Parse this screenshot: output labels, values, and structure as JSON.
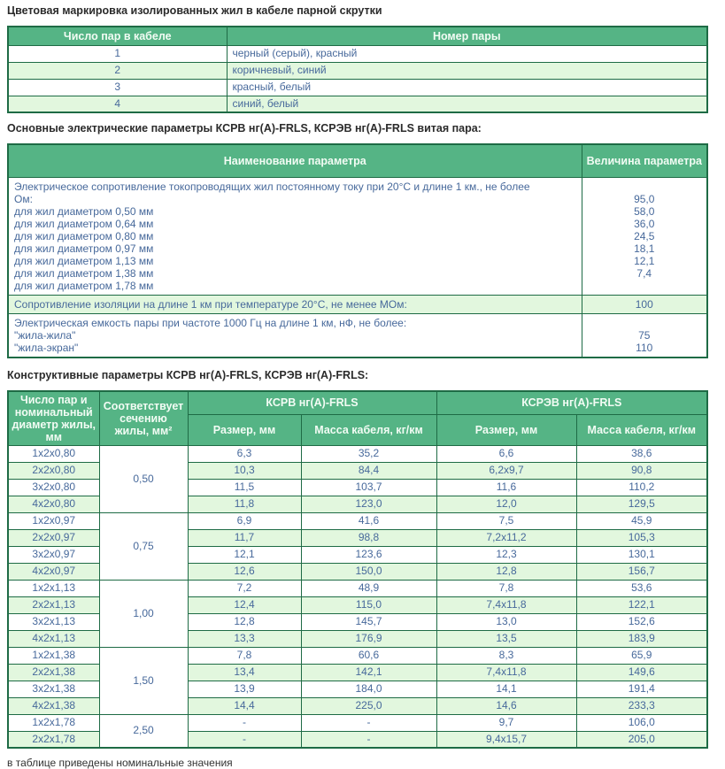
{
  "titles": {
    "section1": "Цветовая маркировка изолированных жил в кабеле парной скрутки",
    "section2": "Основные электрические параметры КСРВ нг(А)-FRLS, КСРЭВ нг(А)-FRLS витая пара:",
    "section3": "Конструктивные параметры КСРВ нг(А)-FRLS, КСРЭВ нг(А)-FRLS:",
    "footnote": "в таблице приведены номинальные значения"
  },
  "colors": {
    "header_green": "#55b485",
    "border_green": "#1e6b45",
    "row_alt_green": "#e2f7de",
    "cell_text_blue": "#47699b",
    "header_text": "#f2fcf4",
    "title_text": "#2b2b2b"
  },
  "color_marking_table": {
    "headers": [
      "Число пар в кабеле",
      "Номер пары"
    ],
    "rows": [
      {
        "pairs": "1",
        "colors": "черный (серый), красный"
      },
      {
        "pairs": "2",
        "colors": "коричневый, синий"
      },
      {
        "pairs": "3",
        "colors": "красный, белый"
      },
      {
        "pairs": "4",
        "colors": "синий, белый"
      }
    ]
  },
  "electrical_params_table": {
    "headers": [
      "Наименование параметра",
      "Величина параметра"
    ],
    "rows": [
      {
        "shaded": false,
        "param_lines": [
          "Электрическое сопротивление токопроводящих жил постоянному току при 20°С и длине 1 км., не более",
          "Ом:",
          "для жил диаметром 0,50 мм",
          "для жил диаметром 0,64 мм",
          "для жил диаметром 0,80 мм",
          "для жил диаметром 0,97 мм",
          "для жил диаметром 1,13 мм",
          "для жил диаметром 1,38 мм",
          "для жил диаметром 1,78 мм"
        ],
        "value_lines": [
          "95,0",
          "58,0",
          "36,0",
          "24,5",
          "18,1",
          "12,1",
          "7,4"
        ]
      },
      {
        "shaded": true,
        "param_lines": [
          "Сопротивление изоляции на длине 1 км при температуре 20°С, не менее МОм:"
        ],
        "value_lines": [
          "100"
        ]
      },
      {
        "shaded": false,
        "param_lines": [
          "Электрическая емкость пары при частоте 1000 Гц на длине 1 км, нФ, не более:",
          "\"жила-жила\"",
          "\"жила-экран\""
        ],
        "value_lines": [
          "",
          "75",
          "110"
        ]
      }
    ]
  },
  "construction_table": {
    "col1_header": "Число пар и номинальный диаметр жилы, мм",
    "col2_header": "Соответствует сечению жилы, мм²",
    "group1_header": "КСРВ нг(А)-FRLS",
    "group2_header": "КСРЭВ нг(А)-FRLS",
    "sub_headers": [
      "Размер, мм",
      "Масса кабеля, кг/км",
      "Размер, мм",
      "Масса кабеля, кг/км"
    ],
    "groups": [
      {
        "cross_section": "0,50",
        "rows": [
          [
            "1x2x0,80",
            "6,3",
            "35,2",
            "6,6",
            "38,6"
          ],
          [
            "2x2x0,80",
            "10,3",
            "84,4",
            "6,2x9,7",
            "90,8"
          ],
          [
            "3x2x0,80",
            "11,5",
            "103,7",
            "11,6",
            "110,2"
          ],
          [
            "4x2x0,80",
            "11,8",
            "123,0",
            "12,0",
            "129,5"
          ]
        ]
      },
      {
        "cross_section": "0,75",
        "rows": [
          [
            "1x2x0,97",
            "6,9",
            "41,6",
            "7,5",
            "45,9"
          ],
          [
            "2x2x0,97",
            "11,7",
            "98,8",
            "7,2x11,2",
            "105,3"
          ],
          [
            "3x2x0,97",
            "12,1",
            "123,6",
            "12,3",
            "130,1"
          ],
          [
            "4x2x0,97",
            "12,6",
            "150,0",
            "12,8",
            "156,7"
          ]
        ]
      },
      {
        "cross_section": "1,00",
        "rows": [
          [
            "1x2x1,13",
            "7,2",
            "48,9",
            "7,8",
            "53,6"
          ],
          [
            "2x2x1,13",
            "12,4",
            "115,0",
            "7,4x11,8",
            "122,1"
          ],
          [
            "3x2x1,13",
            "12,8",
            "145,7",
            "13,0",
            "152,6"
          ],
          [
            "4x2x1,13",
            "13,3",
            "176,9",
            "13,5",
            "183,9"
          ]
        ]
      },
      {
        "cross_section": "1,50",
        "rows": [
          [
            "1x2x1,38",
            "7,8",
            "60,6",
            "8,3",
            "65,9"
          ],
          [
            "2x2x1,38",
            "13,4",
            "142,1",
            "7,4x11,8",
            "149,6"
          ],
          [
            "3x2x1,38",
            "13,9",
            "184,0",
            "14,1",
            "191,4"
          ],
          [
            "4x2x1,38",
            "14,4",
            "225,0",
            "14,6",
            "233,3"
          ]
        ]
      },
      {
        "cross_section": "2,50",
        "rows": [
          [
            "1x2x1,78",
            "-",
            "-",
            "9,7",
            "106,0"
          ],
          [
            "2x2x1,78",
            "-",
            "-",
            "9,4x15,7",
            "205,0"
          ]
        ]
      }
    ]
  }
}
